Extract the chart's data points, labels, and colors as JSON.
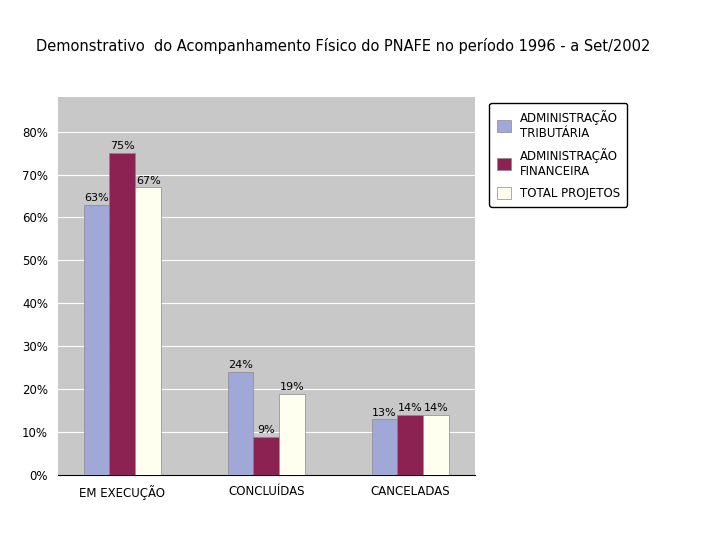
{
  "title": "Demonstrativo  do Acompanhamento Físico do PNAFE no período 1996 - a Set/2002",
  "categories": [
    "EM EXECUÇÃO",
    "CONCLUÍDAS",
    "CANCELADAS"
  ],
  "series": {
    "ADMINISTRAÇÃO\nTRIBUTÁRIA": [
      0.63,
      0.24,
      0.13
    ],
    "ADMINISTRAÇÃO\nFINANCEIRA": [
      0.75,
      0.09,
      0.14
    ],
    "TOTAL PROJETOS": [
      0.67,
      0.19,
      0.14
    ]
  },
  "bar_colors": [
    "#A0A8D8",
    "#8B2252",
    "#FFFFF0"
  ],
  "legend_labels": [
    "ADMINISTRAÇÃO\nTRIBUTÁRIA",
    "ADMINISTRAÇÃO\nFINANCEIRA",
    "TOTAL PROJETOS"
  ],
  "bar_labels": {
    "ADMINISTRAÇÃO\nTRIBUTÁRIA": [
      "63%",
      "24%",
      "13%"
    ],
    "ADMINISTRAÇÃO\nFINANCEIRA": [
      "75%",
      "9%",
      "14%"
    ],
    "TOTAL PROJETOS": [
      "67%",
      "19%",
      "14%"
    ]
  },
  "ylim": [
    0,
    0.88
  ],
  "yticks": [
    0.0,
    0.1,
    0.2,
    0.3,
    0.4,
    0.5,
    0.6,
    0.7,
    0.8
  ],
  "ytick_labels": [
    "0%",
    "10%",
    "20%",
    "30%",
    "40%",
    "50%",
    "60%",
    "70%",
    "80%"
  ],
  "plot_bg_color": "#C8C8C8",
  "fig_bg_color": "#FFFFFF",
  "bar_width": 0.18,
  "title_fontsize": 10.5,
  "tick_fontsize": 8.5,
  "label_fontsize": 8,
  "legend_fontsize": 8.5
}
